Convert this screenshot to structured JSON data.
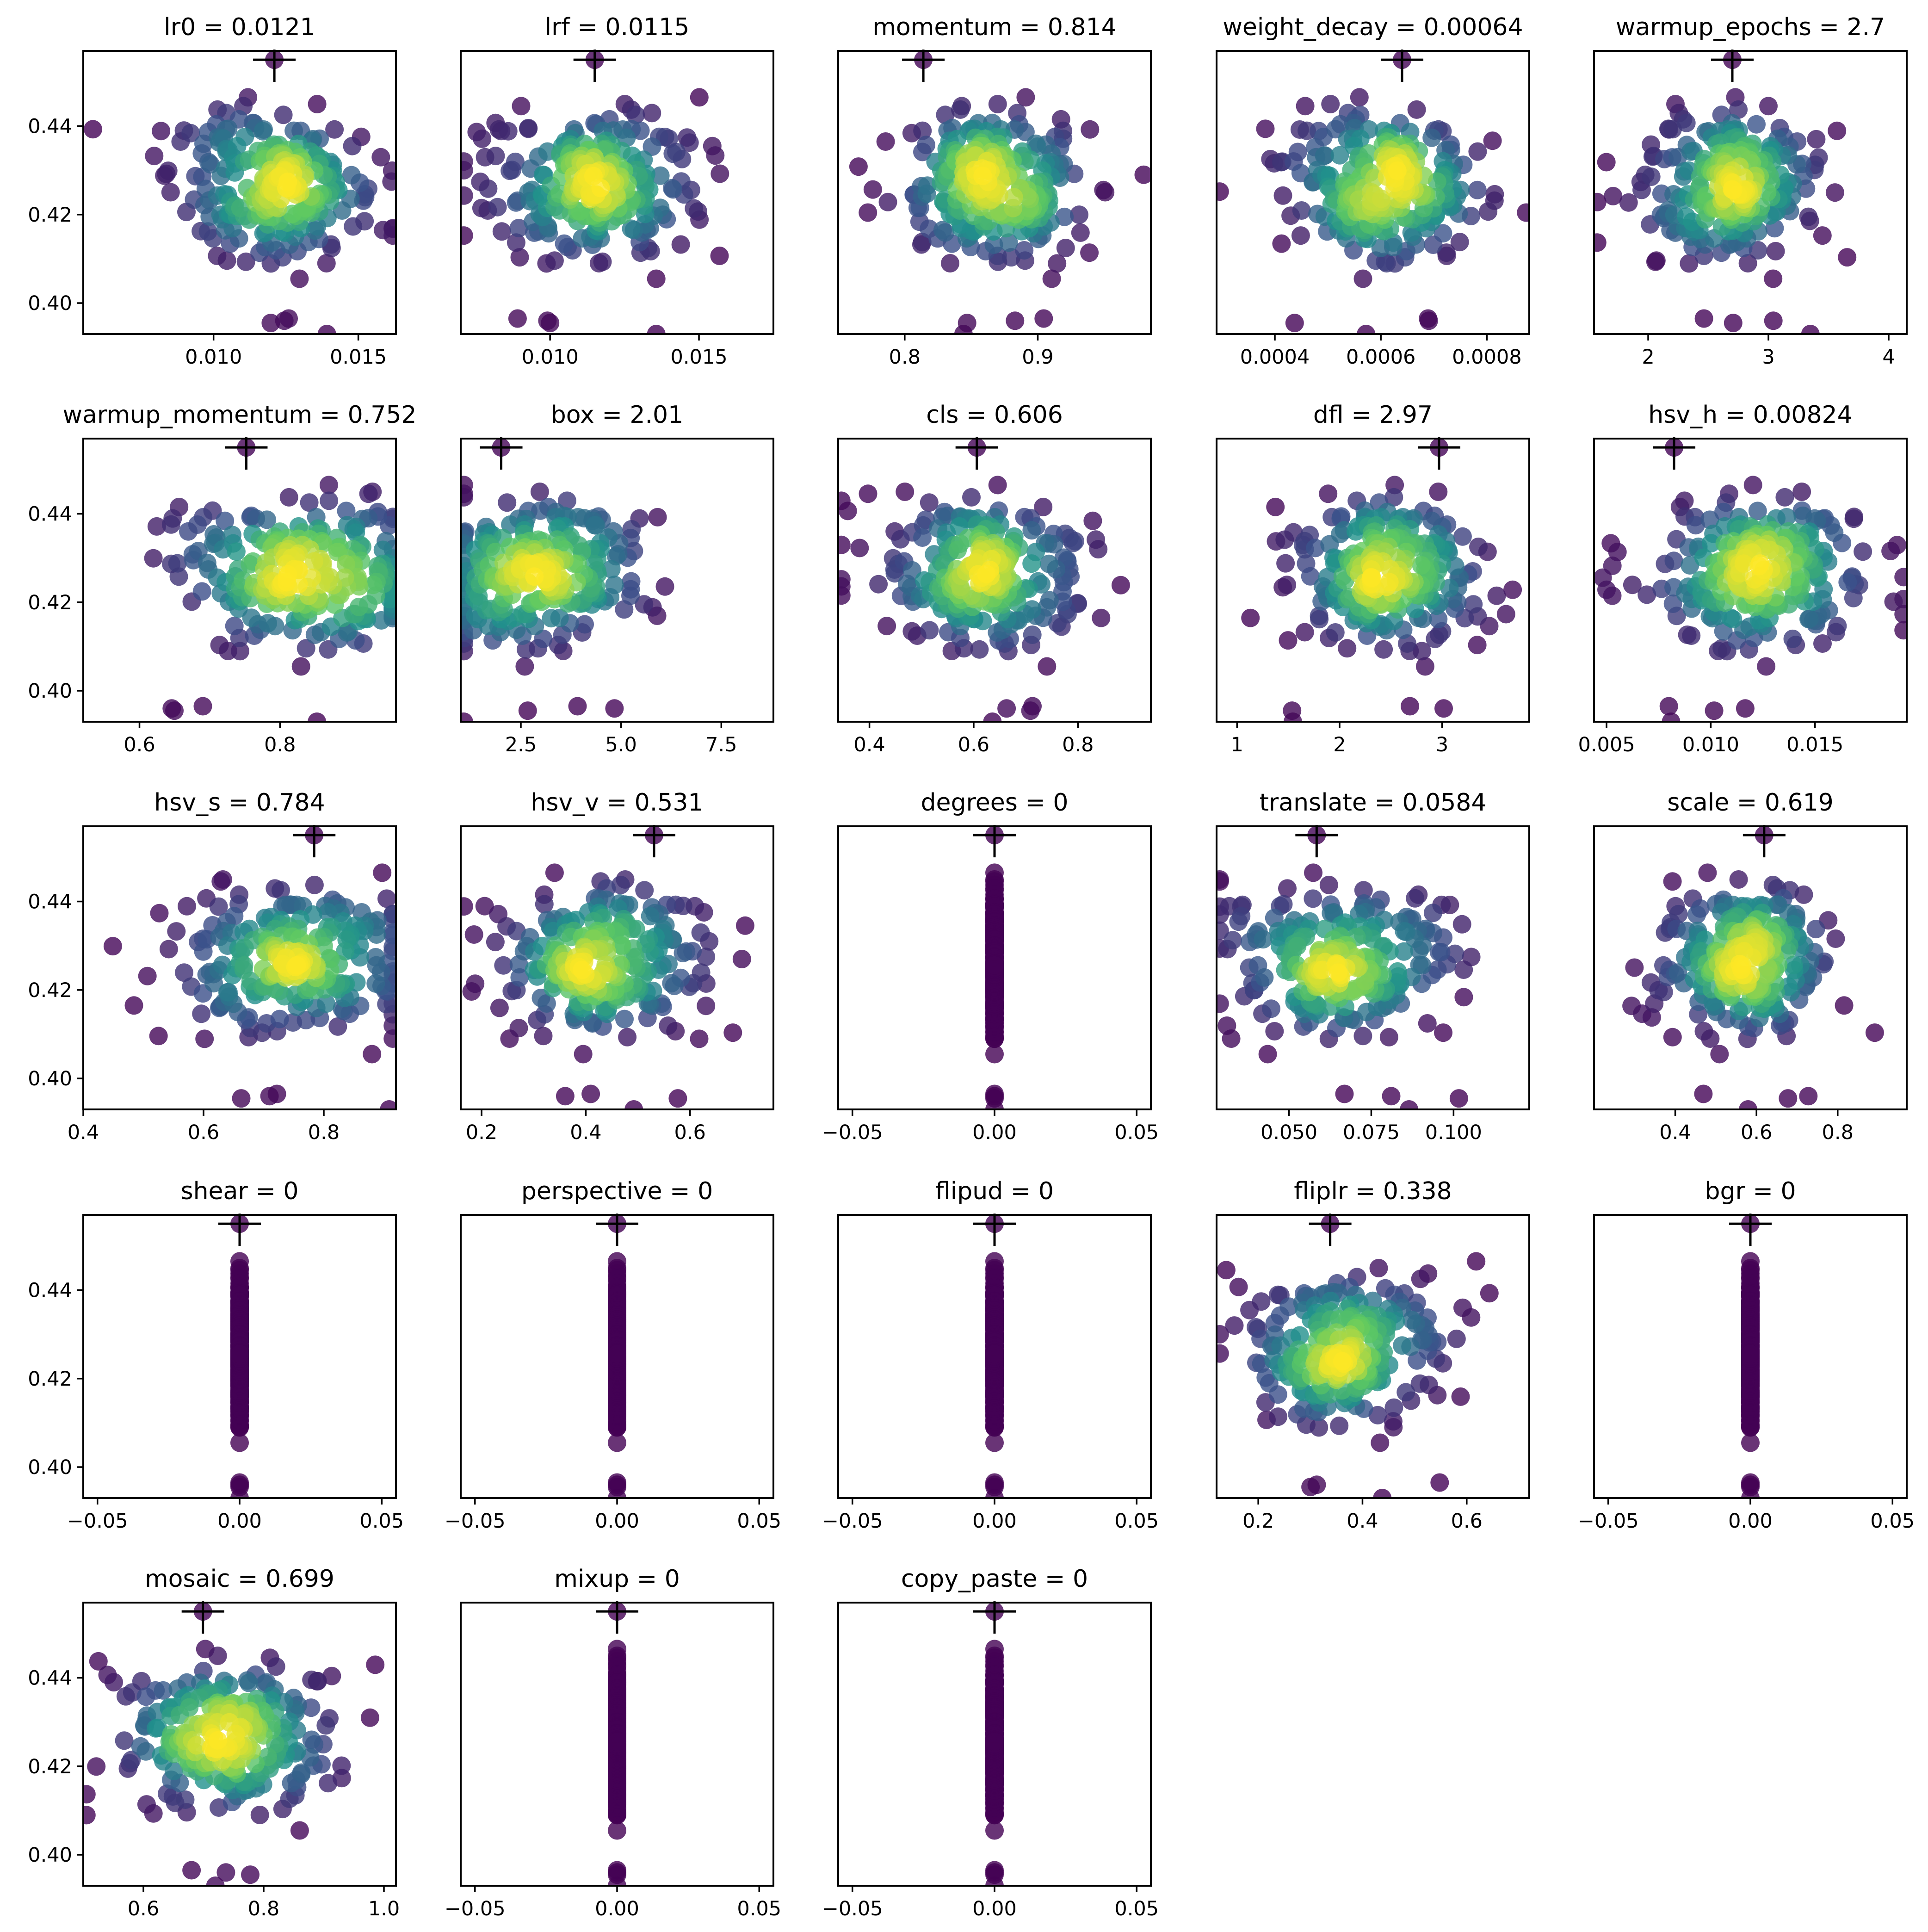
{
  "chart_data": {
    "type": "scatter",
    "description_kind": "hyperparameter evolution grid",
    "shared_y": {
      "range": [
        0.393,
        0.457
      ],
      "ticks": [
        0.4,
        0.42,
        0.44
      ],
      "tick_labels": [
        "0.40",
        "0.42",
        "0.44"
      ]
    },
    "colormap": [
      "#440154",
      "#3b528b",
      "#21918c",
      "#5ec962",
      "#fde725"
    ],
    "subplots": [
      {
        "title": "lr0 = 0.0121",
        "best": 0.0121,
        "xlim": [
          0.0055,
          0.0163
        ],
        "ticks": [
          0.01,
          0.015
        ],
        "tick_labels": [
          "0.010",
          "0.015"
        ],
        "center": 0.0121,
        "spread": 0.0018,
        "mode": "normal"
      },
      {
        "title": "lrf = 0.0115",
        "best": 0.0115,
        "xlim": [
          0.007,
          0.0175
        ],
        "ticks": [
          0.01,
          0.015
        ],
        "tick_labels": [
          "0.010",
          "0.015"
        ],
        "center": 0.0115,
        "spread": 0.0018,
        "mode": "normal"
      },
      {
        "title": "momentum = 0.814",
        "best": 0.814,
        "xlim": [
          0.75,
          0.985
        ],
        "ticks": [
          0.8,
          0.9
        ],
        "tick_labels": [
          "0.8",
          "0.9"
        ],
        "center": 0.865,
        "spread": 0.035,
        "mode": "normal"
      },
      {
        "title": "weight_decay = 0.00064",
        "best": 0.00064,
        "xlim": [
          0.00029,
          0.00088
        ],
        "ticks": [
          0.0004,
          0.0006,
          0.0008
        ],
        "tick_labels": [
          "0.0004",
          "0.0006",
          "0.0008"
        ],
        "center": 0.0006,
        "spread": 9e-05,
        "mode": "normal"
      },
      {
        "title": "warmup_epochs = 2.7",
        "best": 2.7,
        "xlim": [
          1.55,
          4.15
        ],
        "ticks": [
          2,
          3,
          4
        ],
        "tick_labels": [
          "2",
          "3",
          "4"
        ],
        "center": 2.7,
        "spread": 0.4,
        "mode": "normal"
      },
      {
        "title": "warmup_momentum = 0.752",
        "best": 0.752,
        "xlim": [
          0.52,
          0.965
        ],
        "ticks": [
          0.6,
          0.8
        ],
        "tick_labels": [
          "0.6",
          "0.8"
        ],
        "center": 0.82,
        "spread": 0.09,
        "mode": "normal"
      },
      {
        "title": "box = 2.01",
        "best": 2.01,
        "xlim": [
          1.0,
          8.8
        ],
        "ticks": [
          2.5,
          5.0,
          7.5
        ],
        "tick_labels": [
          "2.5",
          "5.0",
          "7.5"
        ],
        "center": 2.9,
        "spread": 1.4,
        "mode": "normal"
      },
      {
        "title": "cls = 0.606",
        "best": 0.606,
        "xlim": [
          0.34,
          0.94
        ],
        "ticks": [
          0.4,
          0.6,
          0.8
        ],
        "tick_labels": [
          "0.4",
          "0.6",
          "0.8"
        ],
        "center": 0.62,
        "spread": 0.1,
        "mode": "normal"
      },
      {
        "title": "dfl = 2.97",
        "best": 2.97,
        "xlim": [
          0.8,
          3.85
        ],
        "ticks": [
          1,
          2,
          3
        ],
        "tick_labels": [
          "1",
          "2",
          "3"
        ],
        "center": 2.45,
        "spread": 0.45,
        "mode": "normal"
      },
      {
        "title": "hsv_h = 0.00824",
        "best": 0.00824,
        "xlim": [
          0.0044,
          0.0194
        ],
        "ticks": [
          0.005,
          0.01,
          0.015
        ],
        "tick_labels": [
          "0.005",
          "0.010",
          "0.015"
        ],
        "center": 0.0122,
        "spread": 0.0028,
        "mode": "normal"
      },
      {
        "title": "hsv_s = 0.784",
        "best": 0.784,
        "xlim": [
          0.4,
          0.92
        ],
        "ticks": [
          0.4,
          0.6,
          0.8
        ],
        "tick_labels": [
          "0.4",
          "0.6",
          "0.8"
        ],
        "center": 0.75,
        "spread": 0.1,
        "mode": "normal"
      },
      {
        "title": "hsv_v = 0.531",
        "best": 0.531,
        "xlim": [
          0.16,
          0.76
        ],
        "ticks": [
          0.2,
          0.4,
          0.6
        ],
        "tick_labels": [
          "0.2",
          "0.4",
          "0.6"
        ],
        "center": 0.42,
        "spread": 0.1,
        "mode": "normal"
      },
      {
        "title": "degrees = 0",
        "best": 0,
        "xlim": [
          -0.055,
          0.055
        ],
        "ticks": [
          -0.05,
          0.0,
          0.05
        ],
        "tick_labels": [
          "−0.05",
          "0.00",
          "0.05"
        ],
        "center": 0,
        "spread": 0,
        "mode": "constant"
      },
      {
        "title": "translate = 0.0584",
        "best": 0.0584,
        "xlim": [
          0.028,
          0.123
        ],
        "ticks": [
          0.05,
          0.075,
          0.1
        ],
        "tick_labels": [
          "0.050",
          "0.075",
          "0.100"
        ],
        "center": 0.065,
        "spread": 0.018,
        "mode": "normal"
      },
      {
        "title": "scale = 0.619",
        "best": 0.619,
        "xlim": [
          0.2,
          0.97
        ],
        "ticks": [
          0.4,
          0.6,
          0.8
        ],
        "tick_labels": [
          "0.4",
          "0.6",
          "0.8"
        ],
        "center": 0.58,
        "spread": 0.11,
        "mode": "normal"
      },
      {
        "title": "shear = 0",
        "best": 0,
        "xlim": [
          -0.055,
          0.055
        ],
        "ticks": [
          -0.05,
          0.0,
          0.05
        ],
        "tick_labels": [
          "−0.05",
          "0.00",
          "0.05"
        ],
        "center": 0,
        "spread": 0,
        "mode": "constant"
      },
      {
        "title": "perspective = 0",
        "best": 0,
        "xlim": [
          -0.055,
          0.055
        ],
        "ticks": [
          -0.05,
          0.0,
          0.05
        ],
        "tick_labels": [
          "−0.05",
          "0.00",
          "0.05"
        ],
        "center": 0,
        "spread": 0,
        "mode": "constant"
      },
      {
        "title": "flipud = 0",
        "best": 0,
        "xlim": [
          -0.055,
          0.055
        ],
        "ticks": [
          -0.05,
          0.0,
          0.05
        ],
        "tick_labels": [
          "−0.05",
          "0.00",
          "0.05"
        ],
        "center": 0,
        "spread": 0,
        "mode": "constant"
      },
      {
        "title": "fliplr = 0.338",
        "best": 0.338,
        "xlim": [
          0.12,
          0.72
        ],
        "ticks": [
          0.2,
          0.4,
          0.6
        ],
        "tick_labels": [
          "0.2",
          "0.4",
          "0.6"
        ],
        "center": 0.37,
        "spread": 0.1,
        "mode": "normal"
      },
      {
        "title": "bgr = 0",
        "best": 0,
        "xlim": [
          -0.055,
          0.055
        ],
        "ticks": [
          -0.05,
          0.0,
          0.05
        ],
        "tick_labels": [
          "−0.05",
          "0.00",
          "0.05"
        ],
        "center": 0,
        "spread": 0,
        "mode": "constant"
      },
      {
        "title": "mosaic = 0.699",
        "best": 0.699,
        "xlim": [
          0.5,
          1.02
        ],
        "ticks": [
          0.6,
          0.8,
          1.0
        ],
        "tick_labels": [
          "0.6",
          "0.8",
          "1.0"
        ],
        "center": 0.74,
        "spread": 0.09,
        "mode": "normal"
      },
      {
        "title": "mixup = 0",
        "best": 0,
        "xlim": [
          -0.055,
          0.055
        ],
        "ticks": [
          -0.05,
          0.0,
          0.05
        ],
        "tick_labels": [
          "−0.05",
          "0.00",
          "0.05"
        ],
        "center": 0,
        "spread": 0,
        "mode": "constant"
      },
      {
        "title": "copy_paste = 0",
        "best": 0,
        "xlim": [
          -0.055,
          0.055
        ],
        "ticks": [
          -0.05,
          0.0,
          0.05
        ],
        "tick_labels": [
          "−0.05",
          "0.00",
          "0.05"
        ],
        "center": 0,
        "spread": 0,
        "mode": "constant"
      }
    ],
    "best_fitness": 0.455,
    "points_per_subplot": 240
  }
}
